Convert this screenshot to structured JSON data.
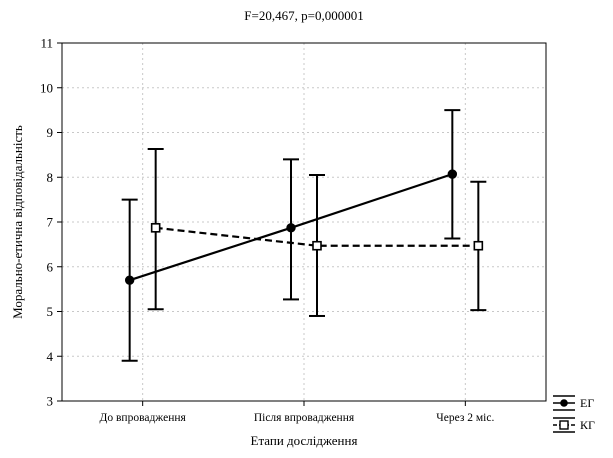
{
  "chart_data": {
    "type": "line",
    "title": "F=20,467, p=0,000001",
    "xlabel": "Етапи дослідження",
    "ylabel": "Морально-етична відповідальність",
    "categories": [
      "До впровадження",
      "Після впровадження",
      "Через 2 міс."
    ],
    "ylim": [
      3,
      11
    ],
    "yticks": [
      "3",
      "4",
      "5",
      "6",
      "7",
      "8",
      "9",
      "10",
      "11"
    ],
    "grid": true,
    "legend_position": "bottom-right",
    "series": [
      {
        "name": "ЕГ",
        "values": [
          5.7,
          6.87,
          8.07
        ],
        "lower": [
          3.9,
          5.27,
          6.63
        ],
        "upper": [
          7.5,
          8.4,
          9.5
        ],
        "line_style": "solid",
        "marker": "filled-circle",
        "color": "#000000"
      },
      {
        "name": "КГ",
        "values": [
          6.87,
          6.47,
          6.47
        ],
        "lower": [
          5.05,
          4.9,
          5.03
        ],
        "upper": [
          8.63,
          8.05,
          7.9
        ],
        "line_style": "dashed",
        "marker": "open-square",
        "color": "#000000"
      }
    ]
  }
}
